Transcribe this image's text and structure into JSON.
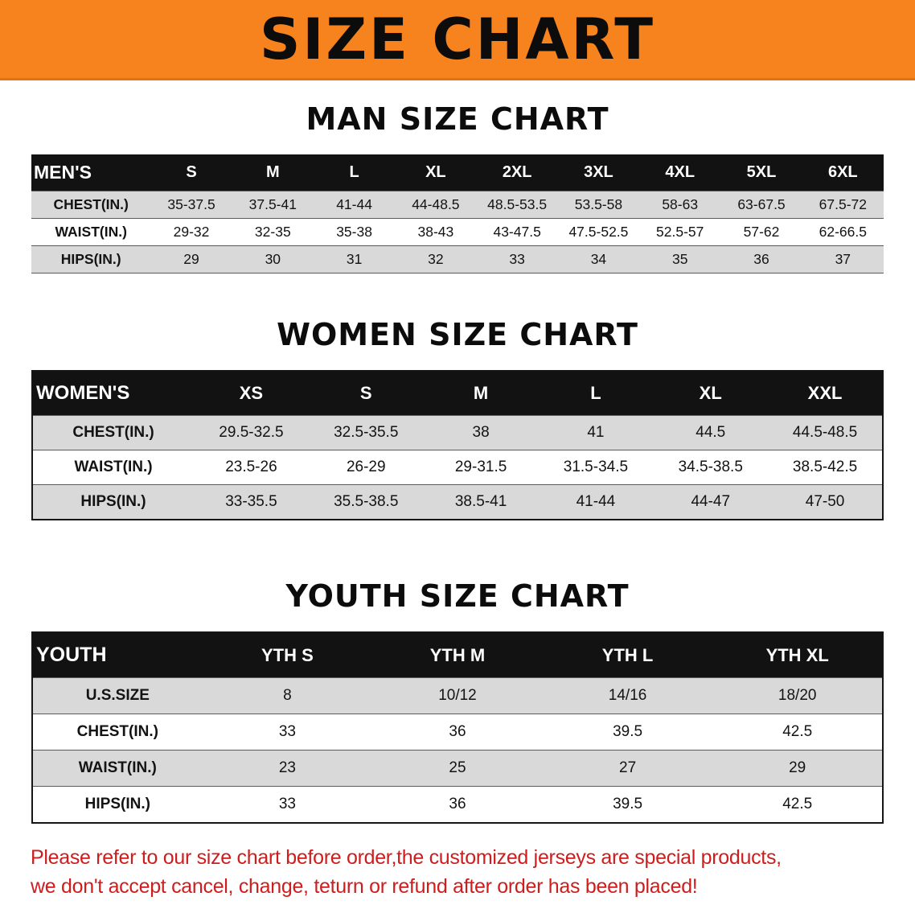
{
  "banner": {
    "title": "SIZE CHART"
  },
  "sections": [
    {
      "heading": "MAN SIZE CHART",
      "corner_label": "MEN'S",
      "columns": [
        "S",
        "M",
        "L",
        "XL",
        "2XL",
        "3XL",
        "4XL",
        "5XL",
        "6XL"
      ],
      "rows": [
        {
          "label": "CHEST(IN.)",
          "values": [
            "35-37.5",
            "37.5-41",
            "41-44",
            "44-48.5",
            "48.5-53.5",
            "53.5-58",
            "58-63",
            "63-67.5",
            "67.5-72"
          ]
        },
        {
          "label": "WAIST(IN.)",
          "values": [
            "29-32",
            "32-35",
            "35-38",
            "38-43",
            "43-47.5",
            "47.5-52.5",
            "52.5-57",
            "57-62",
            "62-66.5"
          ]
        },
        {
          "label": "HIPS(IN.)",
          "values": [
            "29",
            "30",
            "31",
            "32",
            "33",
            "34",
            "35",
            "36",
            "37"
          ]
        }
      ]
    },
    {
      "heading": "WOMEN SIZE CHART",
      "corner_label": "WOMEN'S",
      "columns": [
        "XS",
        "S",
        "M",
        "L",
        "XL",
        "XXL"
      ],
      "rows": [
        {
          "label": "CHEST(IN.)",
          "values": [
            "29.5-32.5",
            "32.5-35.5",
            "38",
            "41",
            "44.5",
            "44.5-48.5"
          ]
        },
        {
          "label": "WAIST(IN.)",
          "values": [
            "23.5-26",
            "26-29",
            "29-31.5",
            "31.5-34.5",
            "34.5-38.5",
            "38.5-42.5"
          ]
        },
        {
          "label": "HIPS(IN.)",
          "values": [
            "33-35.5",
            "35.5-38.5",
            "38.5-41",
            "41-44",
            "44-47",
            "47-50"
          ]
        }
      ]
    },
    {
      "heading": "YOUTH SIZE CHART",
      "corner_label": "YOUTH",
      "columns": [
        "YTH S",
        "YTH M",
        "YTH L",
        "YTH XL"
      ],
      "rows": [
        {
          "label": "U.S.SIZE",
          "values": [
            "8",
            "10/12",
            "14/16",
            "18/20"
          ]
        },
        {
          "label": "CHEST(IN.)",
          "values": [
            "33",
            "36",
            "39.5",
            "42.5"
          ]
        },
        {
          "label": "WAIST(IN.)",
          "values": [
            "23",
            "25",
            "27",
            "29"
          ]
        },
        {
          "label": "HIPS(IN.)",
          "values": [
            "33",
            "36",
            "39.5",
            "42.5"
          ]
        }
      ]
    }
  ],
  "notice": {
    "lines": [
      "Please refer to our size chart before order,the customized jerseys are special products,",
      "we don't accept cancel, change, teturn or refund after order has been placed!"
    ]
  },
  "colors": {
    "banner_bg": "#f6831d",
    "table_header_bg": "#121212",
    "row_alt_bg": "#d9d9d9",
    "notice_text": "#cd1d1d"
  }
}
